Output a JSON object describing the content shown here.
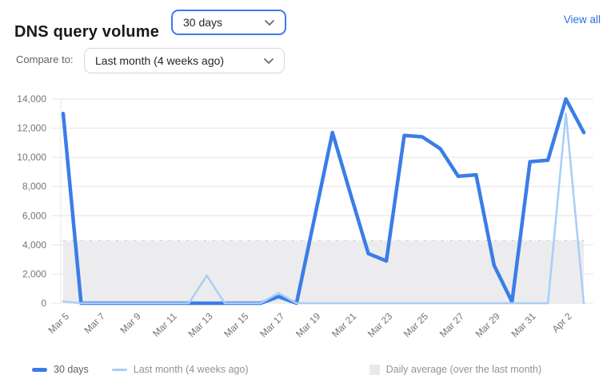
{
  "header": {
    "title": "DNS query volume",
    "range_select": {
      "value": "30 days"
    },
    "view_all_label": "View all",
    "compare_label": "Compare to:",
    "compare_select": {
      "value": "Last month (4 weeks ago)"
    }
  },
  "colors": {
    "accent_blue": "#3a7de8",
    "light_blue": "#a8cdf8",
    "band_gray": "#e9e9eb",
    "grid_gray": "#e4e4e7",
    "tick_text": "#70757d",
    "link_blue": "#2c6fe6"
  },
  "chart_data": {
    "type": "line",
    "title": "DNS query volume",
    "xlabel": "",
    "ylabel": "",
    "grid": true,
    "legend_position": "bottom",
    "ylim": [
      0,
      14000
    ],
    "y_ticks": [
      0,
      2000,
      4000,
      6000,
      8000,
      10000,
      12000,
      14000
    ],
    "x_tick_step": 2,
    "x_categories": [
      "Mar 5",
      "Mar 6",
      "Mar 7",
      "Mar 8",
      "Mar 9",
      "Mar 10",
      "Mar 11",
      "Mar 12",
      "Mar 13",
      "Mar 14",
      "Mar 15",
      "Mar 16",
      "Mar 17",
      "Mar 18",
      "Mar 19",
      "Mar 20",
      "Mar 21",
      "Mar 22",
      "Mar 23",
      "Mar 24",
      "Mar 25",
      "Mar 26",
      "Mar 27",
      "Mar 28",
      "Mar 29",
      "Mar 30",
      "Mar 31",
      "Apr 1",
      "Apr 2",
      "Apr 3"
    ],
    "series": [
      {
        "name": "30 days",
        "color": "#3a7de8",
        "width": 4.5,
        "values": [
          13000,
          0,
          0,
          0,
          0,
          0,
          0,
          0,
          0,
          0,
          0,
          0,
          450,
          0,
          5850,
          11700,
          7500,
          3400,
          2900,
          11500,
          11400,
          10600,
          8700,
          8800,
          2600,
          100,
          9700,
          9800,
          14000,
          11700
        ]
      },
      {
        "name": "Last month (4 weeks ago)",
        "color": "#a8cdf8",
        "width": 2.5,
        "values": [
          120,
          0,
          0,
          0,
          0,
          0,
          0,
          0,
          1900,
          0,
          0,
          0,
          700,
          0,
          0,
          0,
          0,
          0,
          0,
          0,
          0,
          0,
          0,
          0,
          0,
          0,
          0,
          0,
          13000,
          0
        ]
      }
    ],
    "band": {
      "name": "Daily average (over the last month)",
      "from": 0,
      "to": 4300,
      "color": "#e9e9eb"
    }
  }
}
